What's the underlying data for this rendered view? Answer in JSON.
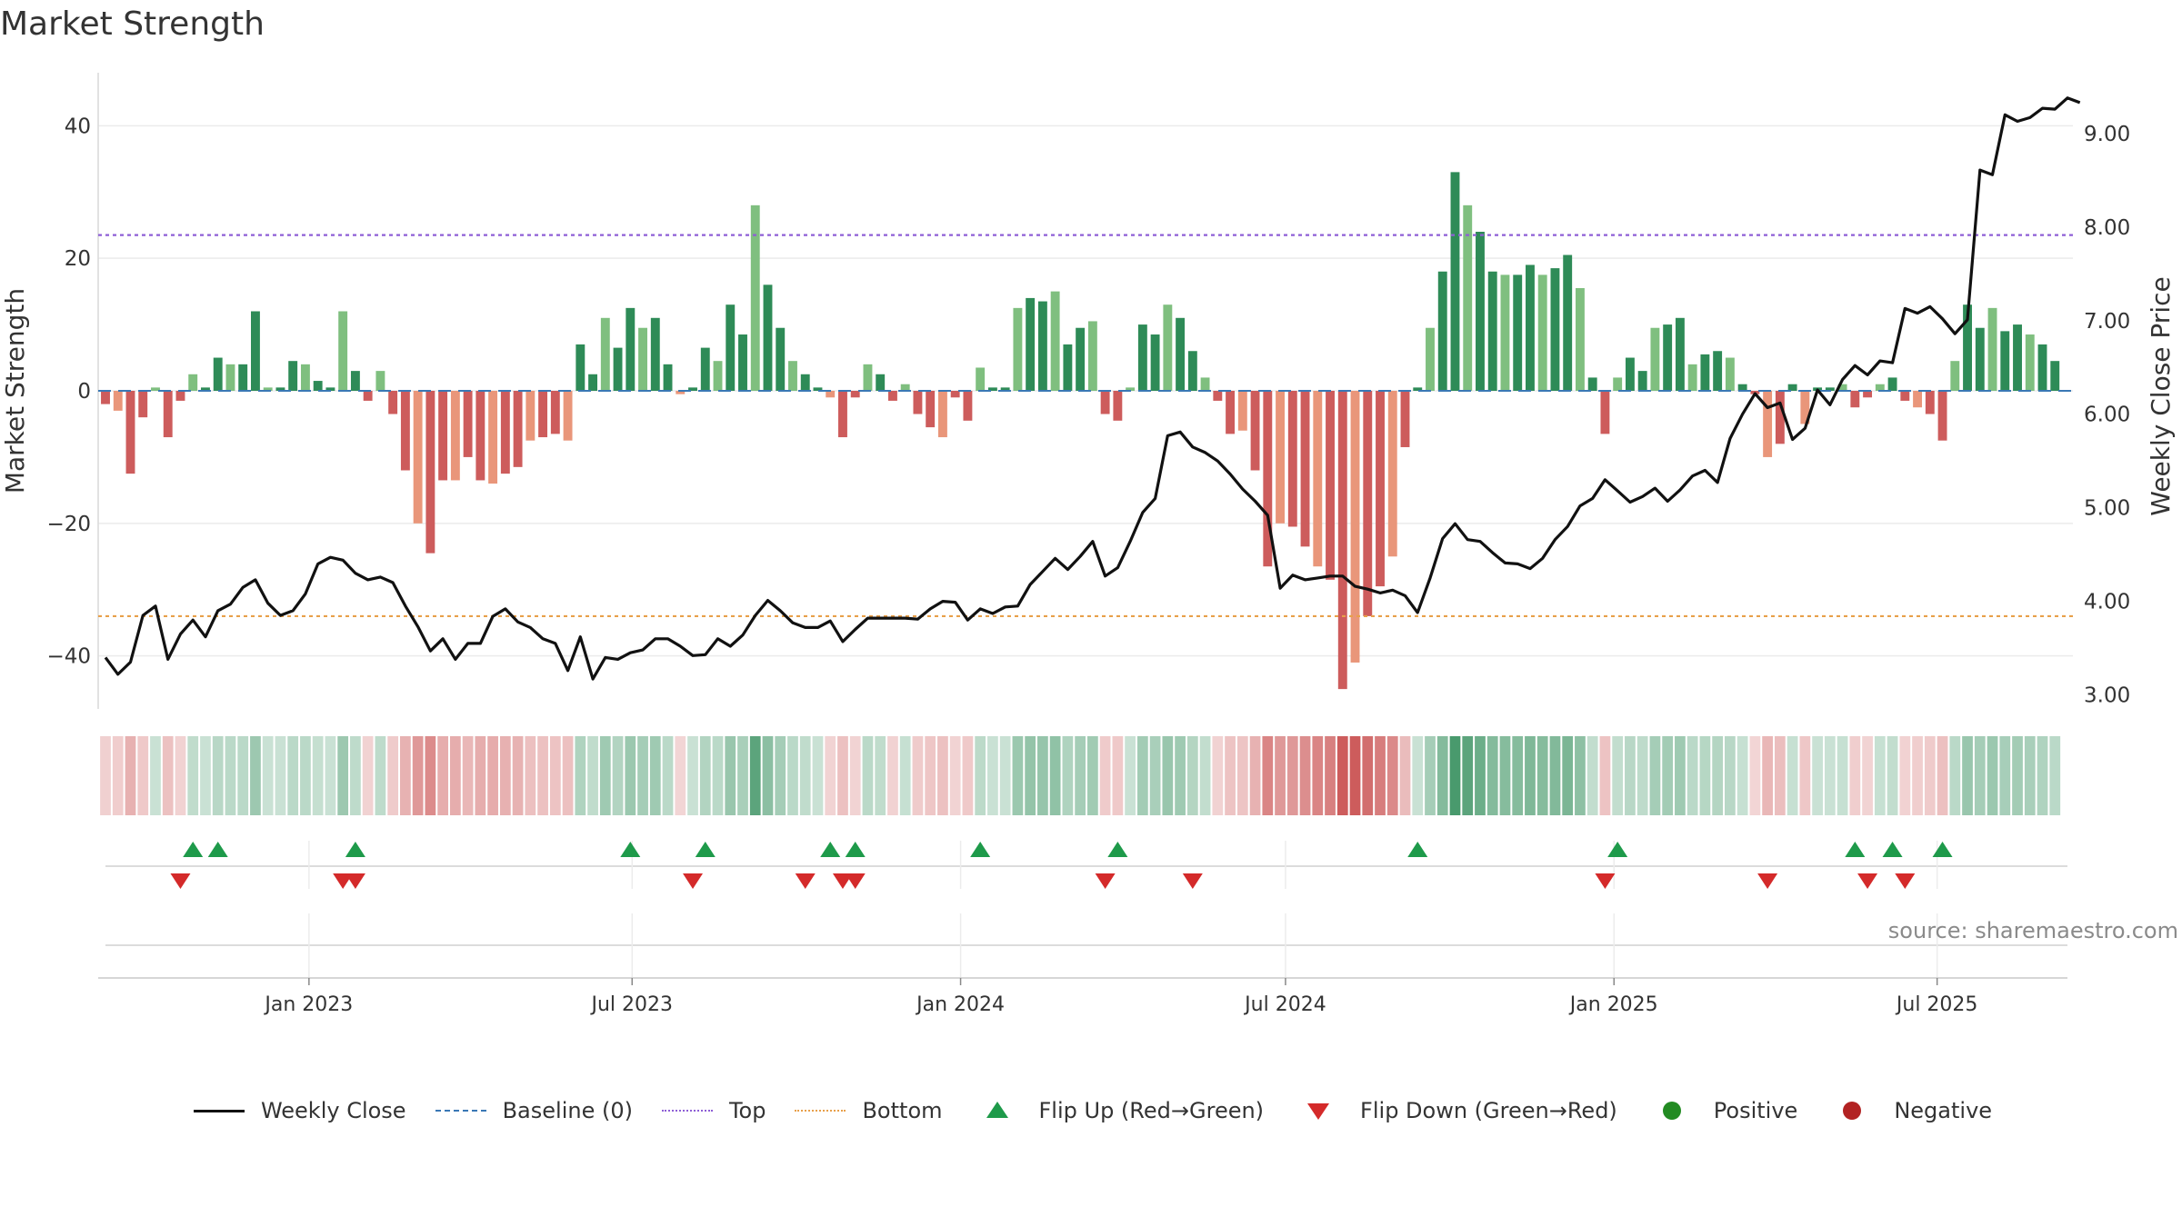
{
  "header": {
    "title": "Market Strength",
    "source": "source: sharemaestro.com"
  },
  "colors": {
    "pos_dark": "#2e8b57",
    "pos_light": "#7fbf7f",
    "neg_dark": "#cd5c5c",
    "neg_light": "#e9967a",
    "price": "#111111",
    "baseline": "#3a78b5",
    "top": "#8e5fd6",
    "bottom": "#e8a04a",
    "flip_up": "#1e9a4a",
    "flip_down": "#d42a2a",
    "positive": "#228b22",
    "negative": "#b22222"
  },
  "legend": [
    {
      "label": "Weekly Close",
      "kind": "line",
      "color": "#111111",
      "dash": "solid"
    },
    {
      "label": "Baseline (0)",
      "kind": "line",
      "color": "#3a78b5",
      "dash": "dashed"
    },
    {
      "label": "Top",
      "kind": "line",
      "color": "#8e5fd6",
      "dash": "dotted"
    },
    {
      "label": "Bottom",
      "kind": "line",
      "color": "#e8a04a",
      "dash": "dotted"
    },
    {
      "label": "Flip Up (Red→Green)",
      "kind": "tri-up",
      "color": "#1e9a4a"
    },
    {
      "label": "Flip Down (Green→Red)",
      "kind": "tri-down",
      "color": "#d42a2a"
    },
    {
      "label": "Positive",
      "kind": "dot",
      "color": "#228b22"
    },
    {
      "label": "Negative",
      "kind": "dot",
      "color": "#b22222"
    }
  ],
  "chart_data": {
    "type": "bar",
    "title": "Market Strength",
    "ylabel": "Market Strength",
    "y2label": "Weekly Close Price",
    "ylim": [
      -48,
      48
    ],
    "y2lim": [
      2.85,
      9.65
    ],
    "yticks": [
      40,
      20,
      0,
      -20,
      -40
    ],
    "ytick_labels": [
      "40",
      "20",
      "0",
      "−20",
      "−40"
    ],
    "y2ticks": [
      3,
      4,
      5,
      6,
      7,
      8,
      9
    ],
    "y2tick_labels": [
      "3.00",
      "4.00",
      "5.00",
      "6.00",
      "7.00",
      "8.00",
      "9.00"
    ],
    "x_start": "2022-09-09",
    "x_end": "2025-09-12",
    "xticks": [
      "2023-01-01",
      "2023-07-01",
      "2024-01-01",
      "2024-07-01",
      "2025-01-01",
      "2025-07-01"
    ],
    "xtick_labels": [
      "Jan 2023",
      "Jul 2023",
      "Jan 2024",
      "Jul 2024",
      "Jan 2025",
      "Jul 2025"
    ],
    "top_level": 23.5,
    "bottom_level": -34.0,
    "baseline": 0,
    "dates": [
      "2022-09-09",
      "2022-09-16",
      "2022-09-23",
      "2022-09-30",
      "2022-10-07",
      "2022-10-14",
      "2022-10-21",
      "2022-10-28",
      "2022-11-04",
      "2022-11-11",
      "2022-11-18",
      "2022-11-25",
      "2022-12-02",
      "2022-12-09",
      "2022-12-16",
      "2022-12-23",
      "2022-12-30",
      "2023-01-06",
      "2023-01-13",
      "2023-01-20",
      "2023-01-27",
      "2023-02-03",
      "2023-02-10",
      "2023-02-17",
      "2023-02-24",
      "2023-03-03",
      "2023-03-10",
      "2023-03-17",
      "2023-03-24",
      "2023-03-31",
      "2023-04-07",
      "2023-04-14",
      "2023-04-21",
      "2023-04-28",
      "2023-05-05",
      "2023-05-12",
      "2023-05-19",
      "2023-05-26",
      "2023-06-02",
      "2023-06-09",
      "2023-06-16",
      "2023-06-23",
      "2023-06-30",
      "2023-07-07",
      "2023-07-14",
      "2023-07-21",
      "2023-07-28",
      "2023-08-04",
      "2023-08-11",
      "2023-08-18",
      "2023-08-25",
      "2023-09-01",
      "2023-09-08",
      "2023-09-15",
      "2023-09-22",
      "2023-09-29",
      "2023-10-06",
      "2023-10-13",
      "2023-10-20",
      "2023-10-27",
      "2023-11-03",
      "2023-11-10",
      "2023-11-17",
      "2023-11-24",
      "2023-12-01",
      "2023-12-08",
      "2023-12-15",
      "2023-12-22",
      "2023-12-29",
      "2024-01-05",
      "2024-01-12",
      "2024-01-19",
      "2024-01-26",
      "2024-02-02",
      "2024-02-09",
      "2024-02-16",
      "2024-02-23",
      "2024-03-01",
      "2024-03-08",
      "2024-03-15",
      "2024-03-22",
      "2024-03-29",
      "2024-04-05",
      "2024-04-12",
      "2024-04-19",
      "2024-04-26",
      "2024-05-03",
      "2024-05-10",
      "2024-05-17",
      "2024-05-24",
      "2024-05-31",
      "2024-06-07",
      "2024-06-14",
      "2024-06-21",
      "2024-06-28",
      "2024-07-05",
      "2024-07-12",
      "2024-07-19",
      "2024-07-26",
      "2024-08-02",
      "2024-08-09",
      "2024-08-16",
      "2024-08-23",
      "2024-08-30",
      "2024-09-06",
      "2024-09-13",
      "2024-09-20",
      "2024-09-27",
      "2024-10-04",
      "2024-10-11",
      "2024-10-18",
      "2024-10-25",
      "2024-11-01",
      "2024-11-08",
      "2024-11-15",
      "2024-11-22",
      "2024-11-29",
      "2024-12-06",
      "2024-12-13",
      "2024-12-20",
      "2024-12-27",
      "2025-01-03",
      "2025-01-10",
      "2025-01-17",
      "2025-01-24",
      "2025-01-31",
      "2025-02-07",
      "2025-02-14",
      "2025-02-21",
      "2025-02-28",
      "2025-03-07",
      "2025-03-14",
      "2025-03-21",
      "2025-03-28",
      "2025-04-04",
      "2025-04-11",
      "2025-04-18",
      "2025-04-25",
      "2025-05-02",
      "2025-05-09",
      "2025-05-16",
      "2025-05-23",
      "2025-05-30",
      "2025-06-06",
      "2025-06-13",
      "2025-06-20",
      "2025-06-27",
      "2025-07-04",
      "2025-07-11",
      "2025-07-18",
      "2025-07-25",
      "2025-08-01",
      "2025-08-08",
      "2025-08-15",
      "2025-08-22",
      "2025-08-29",
      "2025-09-05",
      "2025-09-12"
    ],
    "strength": [
      -2,
      -3,
      -12.5,
      -4,
      0.5,
      -7,
      -1.5,
      2.5,
      0.5,
      5,
      4,
      4,
      12,
      0.5,
      0.5,
      4.5,
      4,
      1.5,
      0.5,
      12,
      3,
      -1.5,
      3,
      -3.5,
      -12,
      -20,
      -24.5,
      -13.5,
      -13.5,
      -10,
      -13.5,
      -14,
      -12.5,
      -11.5,
      -7.5,
      -7,
      -6.5,
      -7.5,
      7,
      2.5,
      11,
      6.5,
      12.5,
      9.5,
      11,
      4,
      -0.5,
      0.5,
      6.5,
      4.5,
      13,
      8.5,
      28,
      16,
      9.5,
      4.5,
      2.5,
      0.5,
      -1,
      -7,
      -1,
      4,
      2.5,
      -1.5,
      1,
      -3.5,
      -5.5,
      -7,
      -1,
      -4.5,
      3.5,
      0.5,
      0.5,
      12.5,
      14,
      13.5,
      15,
      7,
      9.5,
      10.5,
      -3.5,
      -4.5,
      0.5,
      10,
      8.5,
      13,
      11,
      6,
      2,
      -1.5,
      -6.5,
      -6,
      -12,
      -26.5,
      -20,
      -20.5,
      -23.5,
      -26.5,
      -28.5,
      -45,
      -41,
      -34,
      -29.5,
      -25,
      -8.5,
      0.5,
      9.5,
      18,
      33,
      28,
      24,
      18,
      17.5,
      17.5,
      19,
      17.5,
      18.5,
      20.5,
      15.5,
      2,
      -6.5,
      2,
      5,
      3,
      9.5,
      10,
      11,
      4,
      5.5,
      6,
      5,
      1,
      -0.5,
      -10,
      -8,
      1,
      -5,
      0.5,
      0.5,
      1,
      -2.5,
      -1,
      1,
      2,
      -1.5,
      -2.5,
      -3.5,
      -7.5,
      4.5,
      13,
      9.5,
      12.5,
      9,
      10,
      8.5,
      7,
      4.5
    ],
    "price": [
      3.4,
      3.22,
      3.35,
      3.85,
      3.95,
      3.38,
      3.65,
      3.8,
      3.62,
      3.9,
      3.97,
      4.15,
      4.23,
      3.98,
      3.85,
      3.9,
      4.08,
      4.4,
      4.47,
      4.44,
      4.3,
      4.23,
      4.26,
      4.2,
      3.95,
      3.73,
      3.47,
      3.6,
      3.38,
      3.55,
      3.55,
      3.84,
      3.92,
      3.78,
      3.72,
      3.6,
      3.55,
      3.26,
      3.62,
      3.17,
      3.4,
      3.38,
      3.45,
      3.48,
      3.6,
      3.6,
      3.52,
      3.42,
      3.43,
      3.6,
      3.52,
      3.64,
      3.85,
      4.01,
      3.9,
      3.77,
      3.72,
      3.72,
      3.79,
      3.57,
      3.7,
      3.82,
      3.82,
      3.82,
      3.82,
      3.81,
      3.92,
      4,
      3.99,
      3.8,
      3.92,
      3.87,
      3.94,
      3.95,
      4.18,
      4.32,
      4.46,
      4.34,
      4.48,
      4.64,
      4.27,
      4.36,
      4.64,
      4.95,
      5.1,
      5.77,
      5.81,
      5.65,
      5.59,
      5.5,
      5.36,
      5.2,
      5.07,
      4.92,
      4.14,
      4.28,
      4.23,
      4.25,
      4.27,
      4.27,
      4.16,
      4.13,
      4.09,
      4.12,
      4.06,
      3.88,
      4.25,
      4.67,
      4.83,
      4.66,
      4.64,
      4.52,
      4.41,
      4.4,
      4.35,
      4.46,
      4.66,
      4.8,
      5.02,
      5.1,
      5.3,
      5.18,
      5.06,
      5.12,
      5.21,
      5.07,
      5.19,
      5.34,
      5.4,
      5.27,
      5.74,
      6,
      6.22,
      6.07,
      6.12,
      5.73,
      5.85,
      6.26,
      6.1,
      6.37,
      6.52,
      6.42,
      6.57,
      6.55,
      7.13,
      7.08,
      7.15,
      7.02,
      6.86,
      7.01,
      8.61,
      8.56,
      9.2,
      9.13,
      9.17,
      9.27,
      9.26,
      9.38,
      9.33
    ],
    "flip_up_dates": [
      "2022-10-28",
      "2022-11-11",
      "2023-01-27",
      "2023-06-30",
      "2023-08-11",
      "2023-10-20",
      "2023-11-03",
      "2024-01-12",
      "2024-03-29",
      "2024-09-13",
      "2025-01-03",
      "2025-05-16",
      "2025-06-06",
      "2025-07-04"
    ],
    "flip_down_dates": [
      "2022-10-21",
      "2023-01-20",
      "2023-01-27",
      "2023-08-04",
      "2023-10-06",
      "2023-10-27",
      "2023-11-03",
      "2024-03-22",
      "2024-05-10",
      "2024-12-27",
      "2025-03-28",
      "2025-05-23",
      "2025-06-13"
    ]
  }
}
